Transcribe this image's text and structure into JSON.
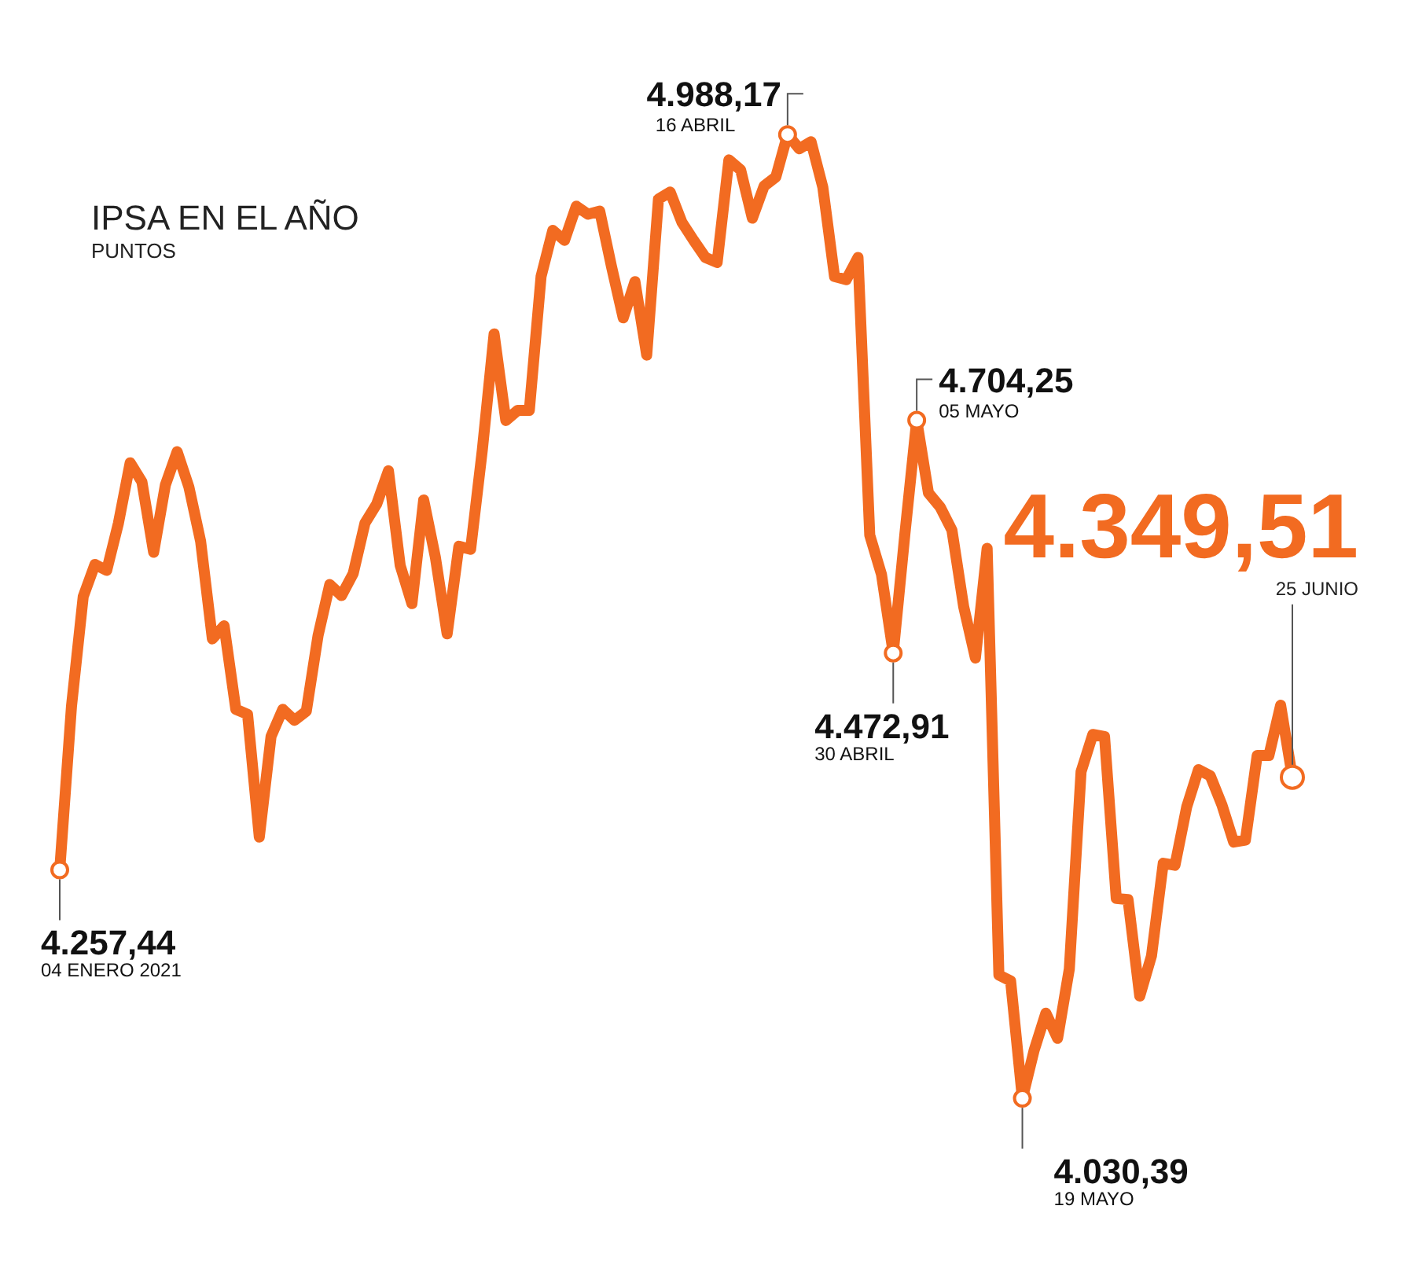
{
  "chart_data": {
    "type": "line",
    "title": "IPSA EN EL AÑO",
    "subtitle": "PUNTOS",
    "categories": [
      null,
      null,
      null,
      null,
      null,
      null,
      null,
      null,
      null,
      null,
      null,
      null,
      null,
      null,
      null,
      null,
      null,
      null,
      null,
      null,
      null,
      null,
      null,
      null,
      null,
      null,
      null,
      null,
      null,
      null,
      null,
      null,
      null,
      null,
      null,
      null,
      null,
      null,
      null,
      null,
      null,
      null,
      null,
      null,
      null,
      null,
      null,
      null,
      null,
      null,
      null,
      null,
      null,
      null,
      null,
      null,
      null,
      null,
      null,
      null,
      null,
      null,
      null,
      null,
      null,
      null,
      null,
      null,
      null,
      null,
      null,
      null,
      null,
      null,
      null,
      null,
      null,
      null,
      null,
      null,
      null,
      null,
      null,
      null,
      null,
      null,
      null,
      null,
      null,
      null,
      null,
      null,
      null,
      null,
      null,
      null,
      null,
      null,
      null,
      null,
      null,
      null,
      null,
      null,
      null,
      null
    ],
    "series": [
      {
        "color": "#f26b21",
        "values": [
          4257.44,
          4420,
          4529,
          4561,
          4555,
          4602,
          4662,
          4643,
          4573,
          4640,
          4673,
          4638,
          4584,
          4487,
          4500,
          4417,
          4412,
          4290,
          4390,
          4417,
          4406,
          4415,
          4490,
          4541,
          4530,
          4552,
          4602,
          4621,
          4654,
          4560,
          4522,
          4625,
          4568,
          4492,
          4579,
          4576,
          4675,
          4790,
          4704,
          4714,
          4714,
          4847,
          4893,
          4883,
          4917,
          4909,
          4912,
          4857,
          4806,
          4842,
          4769,
          4924,
          4931,
          4901,
          4883,
          4866,
          4861,
          4963,
          4953,
          4905,
          4937,
          4946,
          4988.17,
          4974,
          4981,
          4936,
          4847,
          4844,
          4866,
          4590,
          4551,
          4472.91,
          4592,
          4704.25,
          4632,
          4618,
          4595,
          4519,
          4468,
          4577,
          4153,
          4147,
          4030.39,
          4078,
          4115,
          4090,
          4159,
          4355,
          4392,
          4390,
          4229,
          4228,
          4132,
          4172,
          4264,
          4262,
          4320,
          4357,
          4351,
          4322,
          4285,
          4287,
          4371,
          4371,
          4421,
          4349.51
        ],
        "value_labels": [
          "4.257,44",
          null,
          null,
          null,
          null,
          null,
          null,
          null,
          null,
          null,
          null,
          null,
          null,
          null,
          null,
          null,
          null,
          null,
          null,
          null,
          null,
          null,
          null,
          null,
          null,
          null,
          null,
          null,
          null,
          null,
          null,
          null,
          null,
          null,
          null,
          null,
          null,
          null,
          null,
          null,
          null,
          null,
          null,
          null,
          null,
          null,
          null,
          null,
          null,
          null,
          null,
          null,
          null,
          null,
          null,
          null,
          null,
          null,
          null,
          null,
          null,
          null,
          "4.988,17",
          null,
          null,
          null,
          null,
          null,
          null,
          null,
          null,
          "4.472,91",
          null,
          "4.704,25",
          null,
          null,
          null,
          null,
          null,
          null,
          null,
          null,
          "4.030,39",
          null,
          null,
          null,
          null,
          null,
          null,
          null,
          null,
          null,
          null,
          null,
          null,
          null,
          null,
          null,
          null,
          null,
          null,
          null,
          null,
          null,
          null,
          "4.349,51"
        ]
      }
    ],
    "annotations": [
      "04 ENERO 2021",
      "16 ABRIL",
      "30 ABRIL",
      "05 MAYO",
      "19 MAYO",
      "25 JUNIO"
    ],
    "legend": false
  }
}
